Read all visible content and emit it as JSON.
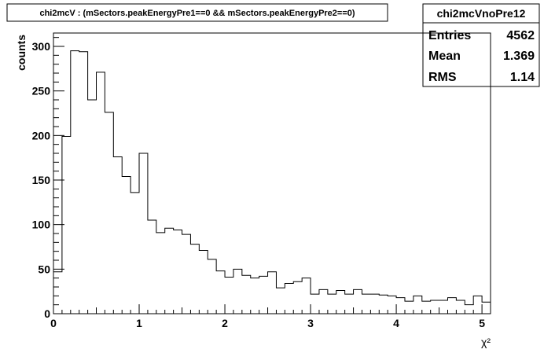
{
  "chart_data": {
    "type": "bar",
    "title": "chi2mcV : (mSectors.peakEnergyPre1==0 && mSectors.peakEnergyPre2==0)",
    "xlabel": "χ²",
    "ylabel": "counts",
    "xlim": [
      0,
      5.1
    ],
    "ylim": [
      0,
      315
    ],
    "bin_width": 0.1,
    "x": [
      0,
      0.1,
      0.2,
      0.3,
      0.4,
      0.5,
      0.6,
      0.7,
      0.8,
      0.9,
      1.0,
      1.1,
      1.2,
      1.3,
      1.4,
      1.5,
      1.6,
      1.7,
      1.8,
      1.9,
      2.0,
      2.1,
      2.2,
      2.3,
      2.4,
      2.5,
      2.6,
      2.7,
      2.8,
      2.9,
      3.0,
      3.1,
      3.2,
      3.3,
      3.4,
      3.5,
      3.6,
      3.7,
      3.8,
      3.9,
      4.0,
      4.1,
      4.2,
      4.3,
      4.4,
      4.5,
      4.6,
      4.7,
      4.8,
      4.9,
      5.0
    ],
    "values": [
      47,
      199,
      295,
      294,
      240,
      271,
      226,
      176,
      154,
      136,
      180,
      105,
      91,
      96,
      94,
      89,
      78,
      71,
      61,
      48,
      41,
      50,
      43,
      40,
      42,
      47,
      29,
      34,
      36,
      40,
      22,
      27,
      22,
      26,
      22,
      27,
      22,
      22,
      21,
      20,
      18,
      14,
      20,
      14,
      15,
      15,
      18,
      15,
      10,
      20,
      13
    ],
    "x_ticks": [
      "0",
      "1",
      "2",
      "3",
      "4",
      "5"
    ],
    "y_ticks": [
      "0",
      "50",
      "100",
      "150",
      "200",
      "250",
      "300"
    ],
    "stats": {
      "name": "chi2mcVnoPre12",
      "rows": [
        {
          "label": "Entries",
          "value": "4562"
        },
        {
          "label": "Mean",
          "value": "1.369"
        },
        {
          "label": "RMS",
          "value": "1.14"
        }
      ]
    },
    "grid": false,
    "legend": "top-right"
  }
}
